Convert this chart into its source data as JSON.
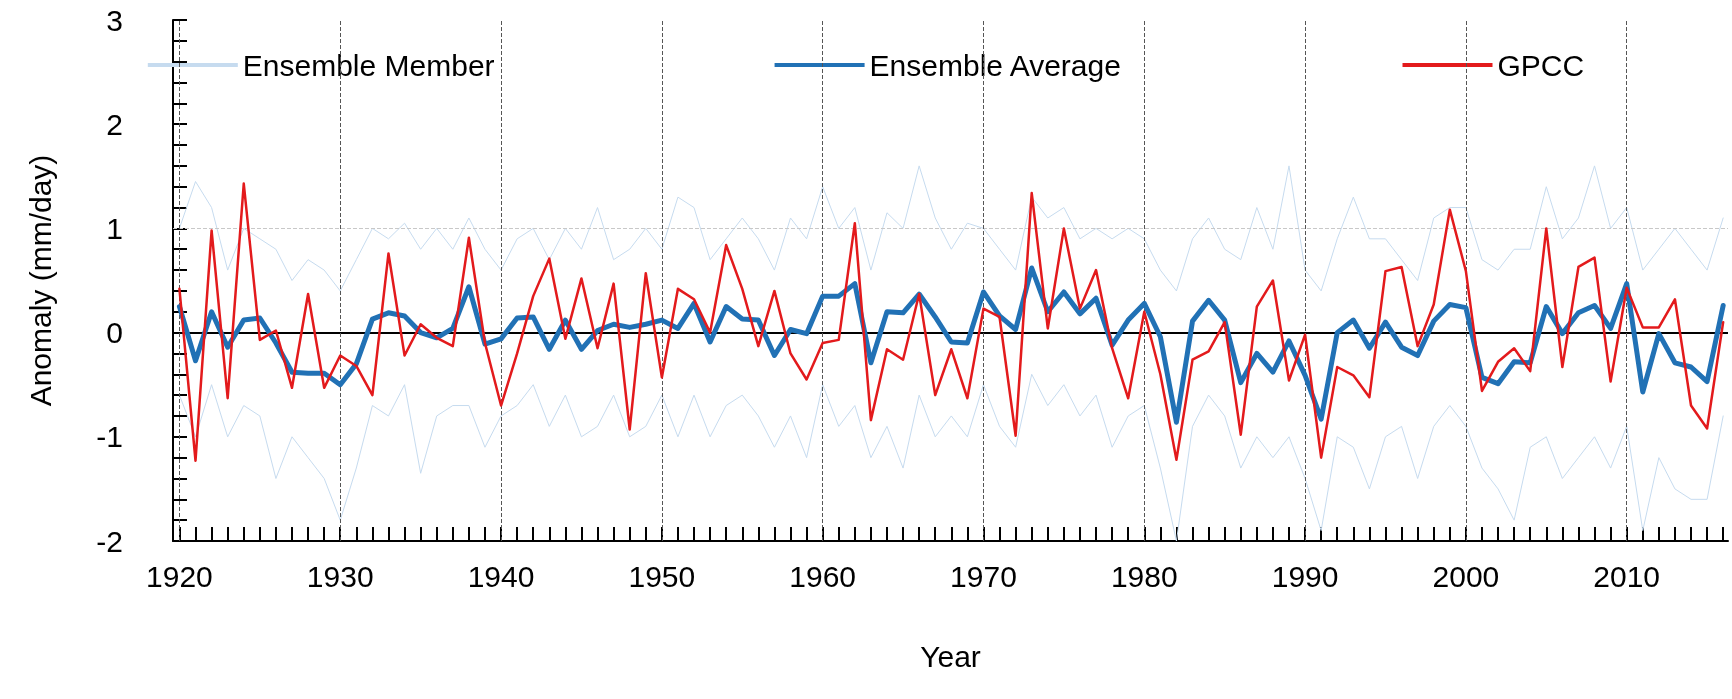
{
  "chart_data": {
    "type": "line",
    "xlabel": "Year",
    "ylabel": "Anomaly (mm/day)",
    "x": [
      1920,
      1921,
      1922,
      1923,
      1924,
      1925,
      1926,
      1927,
      1928,
      1929,
      1930,
      1931,
      1932,
      1933,
      1934,
      1935,
      1936,
      1937,
      1938,
      1939,
      1940,
      1941,
      1942,
      1943,
      1944,
      1945,
      1946,
      1947,
      1948,
      1949,
      1950,
      1951,
      1952,
      1953,
      1954,
      1955,
      1956,
      1957,
      1958,
      1959,
      1960,
      1961,
      1962,
      1963,
      1964,
      1965,
      1966,
      1967,
      1968,
      1969,
      1970,
      1971,
      1972,
      1973,
      1974,
      1975,
      1976,
      1977,
      1978,
      1979,
      1980,
      1981,
      1982,
      1983,
      1984,
      1985,
      1986,
      1987,
      1988,
      1989,
      1990,
      1991,
      1992,
      1993,
      1994,
      1995,
      1996,
      1997,
      1998,
      1999,
      2000,
      2001,
      2002,
      2003,
      2004,
      2005,
      2006,
      2007,
      2008,
      2009,
      2010,
      2011,
      2012,
      2013,
      2014,
      2015,
      2016
    ],
    "series": [
      {
        "name": "Ensemble Member",
        "color": "#c6dbef",
        "values": [
          1.0,
          1.45,
          1.2,
          0.6,
          1.0,
          0.9,
          0.8,
          0.5,
          0.7,
          0.6,
          0.4,
          0.7,
          1.0,
          0.9,
          1.05,
          0.8,
          1.0,
          0.8,
          1.1,
          0.8,
          0.6,
          0.9,
          1.0,
          0.7,
          1.0,
          0.8,
          1.2,
          0.7,
          0.8,
          1.0,
          0.8,
          1.3,
          1.2,
          0.7,
          0.9,
          1.1,
          0.9,
          0.6,
          1.1,
          0.9,
          1.4,
          1.0,
          1.2,
          0.6,
          1.15,
          1.0,
          1.6,
          1.1,
          0.8,
          1.05,
          1.0,
          0.8,
          0.6,
          1.3,
          1.1,
          1.2,
          0.9,
          1.0,
          0.9,
          1.0,
          0.9,
          0.6,
          0.4,
          0.9,
          1.1,
          0.8,
          0.7,
          1.2,
          0.8,
          1.6,
          0.6,
          0.4,
          0.9,
          1.3,
          0.9,
          0.9,
          0.7,
          0.5,
          1.1,
          1.2,
          1.2,
          0.7,
          0.6,
          0.8,
          0.8,
          1.4,
          0.9,
          1.1,
          1.6,
          1.0,
          1.2,
          0.6,
          0.8,
          1.0,
          0.8,
          0.6,
          1.1
        ]
      },
      {
        "color": "#c6dbef",
        "values": [
          -0.6,
          -1.0,
          -0.5,
          -1.0,
          -0.7,
          -0.8,
          -1.4,
          -1.0,
          -1.2,
          -1.4,
          -1.8,
          -1.3,
          -0.7,
          -0.8,
          -0.5,
          -1.35,
          -0.8,
          -0.7,
          -0.7,
          -1.1,
          -0.8,
          -0.7,
          -0.5,
          -0.9,
          -0.6,
          -1.0,
          -0.9,
          -0.6,
          -1.0,
          -0.9,
          -0.6,
          -1.0,
          -0.6,
          -1.0,
          -0.7,
          -0.6,
          -0.8,
          -1.1,
          -0.8,
          -1.2,
          -0.5,
          -0.9,
          -0.7,
          -1.2,
          -0.9,
          -1.3,
          -0.6,
          -1.0,
          -0.8,
          -1.0,
          -0.5,
          -0.9,
          -1.1,
          -0.4,
          -0.7,
          -0.5,
          -0.8,
          -0.6,
          -1.1,
          -0.8,
          -0.7,
          -1.3,
          -2.0,
          -0.9,
          -0.6,
          -0.8,
          -1.3,
          -1.0,
          -1.2,
          -1.0,
          -1.4,
          -1.9,
          -1.0,
          -1.1,
          -1.5,
          -1.0,
          -0.9,
          -1.4,
          -0.9,
          -0.7,
          -0.9,
          -1.3,
          -1.5,
          -1.8,
          -1.1,
          -1.0,
          -1.4,
          -1.2,
          -1.0,
          -1.3,
          -0.9,
          -1.9,
          -1.2,
          -1.5,
          -1.6,
          -1.6,
          -0.8
        ]
      },
      {
        "name": "Ensemble Average",
        "color": "#2171b5",
        "values": [
          0.25,
          -0.27,
          0.2,
          -0.14,
          0.12,
          0.14,
          -0.1,
          -0.38,
          -0.39,
          -0.39,
          -0.5,
          -0.3,
          0.13,
          0.19,
          0.16,
          0.0,
          -0.05,
          0.04,
          0.44,
          -0.11,
          -0.06,
          0.14,
          0.15,
          -0.16,
          0.12,
          -0.16,
          0.02,
          0.08,
          0.05,
          0.08,
          0.12,
          0.04,
          0.28,
          -0.09,
          0.25,
          0.13,
          0.12,
          -0.22,
          0.03,
          -0.01,
          0.35,
          0.35,
          0.47,
          -0.29,
          0.2,
          0.19,
          0.37,
          0.15,
          -0.09,
          -0.1,
          0.39,
          0.16,
          0.03,
          0.62,
          0.2,
          0.39,
          0.18,
          0.33,
          -0.12,
          0.12,
          0.28,
          -0.04,
          -0.86,
          0.11,
          0.31,
          0.12,
          -0.48,
          -0.2,
          -0.38,
          -0.08,
          -0.41,
          -0.83,
          0.0,
          0.12,
          -0.15,
          0.1,
          -0.14,
          -0.22,
          0.11,
          0.27,
          0.24,
          -0.43,
          -0.49,
          -0.28,
          -0.29,
          0.25,
          -0.01,
          0.19,
          0.26,
          0.04,
          0.47,
          -0.57,
          -0.01,
          -0.29,
          -0.33,
          -0.47,
          0.26
        ]
      },
      {
        "name": "GPCC",
        "color": "#e31a1c",
        "values": [
          0.42,
          -1.23,
          0.98,
          -0.63,
          1.43,
          -0.07,
          0.02,
          -0.53,
          0.37,
          -0.53,
          -0.22,
          -0.32,
          -0.6,
          0.76,
          -0.22,
          0.08,
          -0.05,
          -0.13,
          0.91,
          -0.1,
          -0.7,
          -0.2,
          0.35,
          0.71,
          -0.06,
          0.52,
          -0.15,
          0.47,
          -0.93,
          0.57,
          -0.43,
          0.42,
          0.32,
          0.0,
          0.84,
          0.42,
          -0.13,
          0.4,
          -0.2,
          -0.45,
          -0.1,
          -0.07,
          1.05,
          -0.84,
          -0.16,
          -0.26,
          0.37,
          -0.6,
          -0.16,
          -0.63,
          0.23,
          0.15,
          -0.99,
          1.34,
          0.04,
          1.0,
          0.23,
          0.6,
          -0.15,
          -0.63,
          0.2,
          -0.4,
          -1.22,
          -0.26,
          -0.18,
          0.1,
          -0.98,
          0.25,
          0.5,
          -0.46,
          -0.02,
          -1.2,
          -0.33,
          -0.41,
          -0.62,
          0.59,
          0.63,
          -0.13,
          0.27,
          1.18,
          0.59,
          -0.56,
          -0.28,
          -0.15,
          -0.37,
          1.0,
          -0.33,
          0.63,
          0.72,
          -0.47,
          0.43,
          0.05,
          0.05,
          0.32,
          -0.7,
          -0.92,
          0.1
        ]
      }
    ],
    "xlim": [
      1919.6,
      2016.3
    ],
    "xticks": [
      1920,
      {
        "value": 1921,
        "label": null
      },
      {
        "value": 1922,
        "label": null
      },
      {
        "value": 1923,
        "label": null
      },
      {
        "value": 1924,
        "label": null
      },
      {
        "value": 1925,
        "label": null
      },
      {
        "value": 1926,
        "label": null
      },
      {
        "value": 1927,
        "label": null
      },
      {
        "value": 1928,
        "label": null
      },
      {
        "value": 1929,
        "label": null
      },
      1930,
      {
        "value": 1931,
        "label": null
      },
      {
        "value": 1932,
        "label": null
      },
      {
        "value": 1933,
        "label": null
      },
      {
        "value": 1934,
        "label": null
      },
      {
        "value": 1935,
        "label": null
      },
      {
        "value": 1936,
        "label": null
      },
      {
        "value": 1937,
        "label": null
      },
      {
        "value": 1938,
        "label": null
      },
      {
        "value": 1939,
        "label": null
      },
      1940,
      {
        "value": 1941,
        "label": null
      },
      {
        "value": 1942,
        "label": null
      },
      {
        "value": 1943,
        "label": null
      },
      {
        "value": 1944,
        "label": null
      },
      {
        "value": 1945,
        "label": null
      },
      {
        "value": 1946,
        "label": null
      },
      {
        "value": 1947,
        "label": null
      },
      {
        "value": 1948,
        "label": null
      },
      {
        "value": 1949,
        "label": null
      },
      1950,
      {
        "value": 1951,
        "label": null
      },
      {
        "value": 1952,
        "label": null
      },
      {
        "value": 1953,
        "label": null
      },
      {
        "value": 1954,
        "label": null
      },
      {
        "value": 1955,
        "label": null
      },
      {
        "value": 1956,
        "label": null
      },
      {
        "value": 1957,
        "label": null
      },
      {
        "value": 1958,
        "label": null
      },
      {
        "value": 1959,
        "label": null
      },
      1960,
      {
        "value": 1961,
        "label": null
      },
      {
        "value": 1962,
        "label": null
      },
      {
        "value": 1963,
        "label": null
      },
      {
        "value": 1964,
        "label": null
      },
      {
        "value": 1965,
        "label": null
      },
      {
        "value": 1966,
        "label": null
      },
      {
        "value": 1967,
        "label": null
      },
      {
        "value": 1968,
        "label": null
      },
      {
        "value": 1969,
        "label": null
      },
      1970,
      {
        "value": 1971,
        "label": null
      },
      {
        "value": 1972,
        "label": null
      },
      {
        "value": 1973,
        "label": null
      },
      {
        "value": 1974,
        "label": null
      },
      {
        "value": 1975,
        "label": null
      },
      {
        "value": 1976,
        "label": null
      },
      {
        "value": 1977,
        "label": null
      },
      {
        "value": 1978,
        "label": null
      },
      {
        "value": 1979,
        "label": null
      },
      1980,
      {
        "value": 1981,
        "label": null
      },
      {
        "value": 1982,
        "label": null
      },
      {
        "value": 1983,
        "label": null
      },
      {
        "value": 1984,
        "label": null
      },
      {
        "value": 1985,
        "label": null
      },
      {
        "value": 1986,
        "label": null
      },
      {
        "value": 1987,
        "label": null
      },
      {
        "value": 1988,
        "label": null
      },
      {
        "value": 1989,
        "label": null
      },
      1990,
      {
        "value": 1991,
        "label": null
      },
      {
        "value": 1992,
        "label": null
      },
      {
        "value": 1993,
        "label": null
      },
      {
        "value": 1994,
        "label": null
      },
      {
        "value": 1995,
        "label": null
      },
      {
        "value": 1996,
        "label": null
      },
      {
        "value": 1997,
        "label": null
      },
      {
        "value": 1998,
        "label": null
      },
      {
        "value": 1999,
        "label": null
      },
      2000,
      {
        "value": 2001,
        "label": null
      },
      {
        "value": 2002,
        "label": null
      },
      {
        "value": 2003,
        "label": null
      },
      {
        "value": 2004,
        "label": null
      },
      {
        "value": 2005,
        "label": null
      },
      {
        "value": 2006,
        "label": null
      },
      {
        "value": 2007,
        "label": null
      },
      {
        "value": 2008,
        "label": null
      },
      {
        "value": 2009,
        "label": null
      },
      2010,
      {
        "value": 2011,
        "label": null
      },
      {
        "value": 2012,
        "label": null
      },
      {
        "value": 2013,
        "label": null
      },
      {
        "value": 2014,
        "label": null
      },
      {
        "value": 2015,
        "label": null
      },
      {
        "value": 2016,
        "label": null
      }
    ],
    "ylim": [
      -2,
      3
    ],
    "yticks": [
      -2,
      {
        "value": -1.8,
        "label": null
      },
      {
        "value": -1.6,
        "label": null
      },
      {
        "value": -1.4,
        "label": null
      },
      {
        "value": -1.2,
        "label": null
      },
      -1,
      {
        "value": -0.8,
        "label": null
      },
      {
        "value": -0.6,
        "label": null
      },
      {
        "value": -0.4,
        "label": null
      },
      {
        "value": -0.2,
        "label": null
      },
      0,
      {
        "value": 0.2,
        "label": null
      },
      {
        "value": 0.4,
        "label": null
      },
      {
        "value": 0.6,
        "label": null
      },
      {
        "value": 0.8,
        "label": null
      },
      1,
      {
        "value": 1.2,
        "label": null
      },
      {
        "value": 1.4,
        "label": null
      },
      {
        "value": 1.6,
        "label": null
      },
      {
        "value": 1.8,
        "label": null
      },
      2,
      {
        "value": 2.2,
        "label": null
      },
      {
        "value": 2.4,
        "label": null
      },
      {
        "value": 2.6,
        "label": null
      },
      {
        "value": 2.8,
        "label": null
      },
      3
    ],
    "ref_lines": [
      {
        "axis": "y",
        "value": 0,
        "color": "#000000",
        "line_style": "solid"
      },
      {
        "axis": "y",
        "value": 1,
        "color": "#c8c8c8",
        "line_style": "dashed"
      }
    ],
    "grid": "x",
    "legend": "top",
    "marker": "none",
    "line_style": "solid"
  }
}
